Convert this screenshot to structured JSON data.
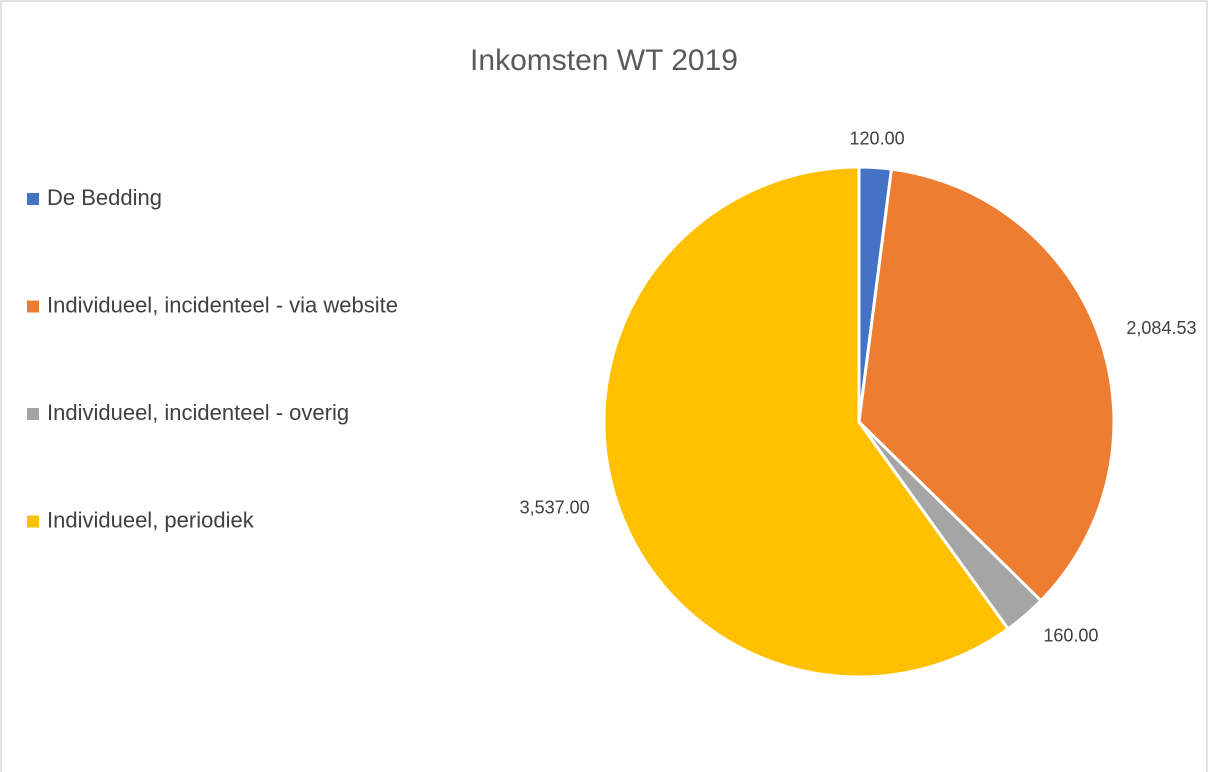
{
  "chart_data": {
    "type": "pie",
    "title": "Inkomsten WT 2019",
    "categories": [
      "De Bedding",
      "Individueel, incidenteel - via website",
      "Individueel, incidenteel - overig",
      "Individueel, periodiek"
    ],
    "values": [
      120,
      2084.53,
      160,
      3537
    ],
    "value_labels": [
      "120.00",
      "2,084.53",
      "160.00",
      "3,537.00"
    ],
    "colors": [
      "#4472c4",
      "#ed7d31",
      "#a5a5a5",
      "#ffc000"
    ],
    "legend": "left"
  }
}
